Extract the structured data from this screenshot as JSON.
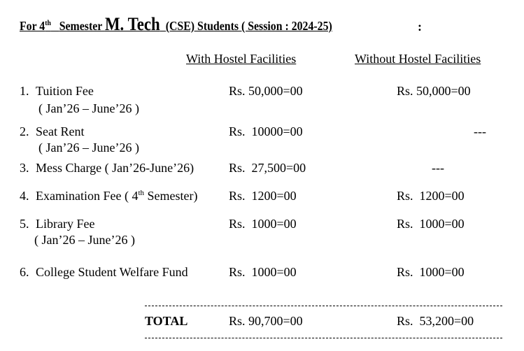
{
  "title": {
    "pre": "For 4",
    "sup": "th",
    "mid": "Semester",
    "big": "M. Tech",
    "post": "(CSE) Students ( Session : 2024-25)",
    "colon": ":"
  },
  "headers": {
    "with": "With Hostel Facilities",
    "without": "Without Hostel Facilities"
  },
  "rows": [
    {
      "num": "1.",
      "label": "Tuition Fee",
      "sub": "( Jan’26 – June’26 )",
      "with": "Rs. 50,000=00",
      "without": "Rs. 50,000=00"
    },
    {
      "num": "2.",
      "label": "Seat Rent",
      "sub": "( Jan’26 – June’26 )",
      "with": "Rs.  10000=00",
      "without": "---"
    },
    {
      "num": "3.",
      "label": "Mess Charge ( Jan’26-June’26)",
      "with": "Rs.  27,500=00",
      "without": "---"
    },
    {
      "num": "4.",
      "label": "Examination Fee ( 4",
      "label_sup": "th",
      "label_post": " Semester)",
      "with": "Rs.  1200=00",
      "without": "Rs.  1200=00"
    },
    {
      "num": "5.",
      "label": "Library Fee",
      "sub": "( Jan’26 – June’26 )",
      "with": "Rs.  1000=00",
      "without": "Rs.  1000=00"
    },
    {
      "num": "6.",
      "label": "College Student Welfare Fund",
      "with": "Rs.  1000=00",
      "without": "Rs.  1000=00"
    }
  ],
  "total": {
    "label": "TOTAL",
    "with": "Rs. 90,700=00",
    "without": "Rs.  53,200=00"
  }
}
